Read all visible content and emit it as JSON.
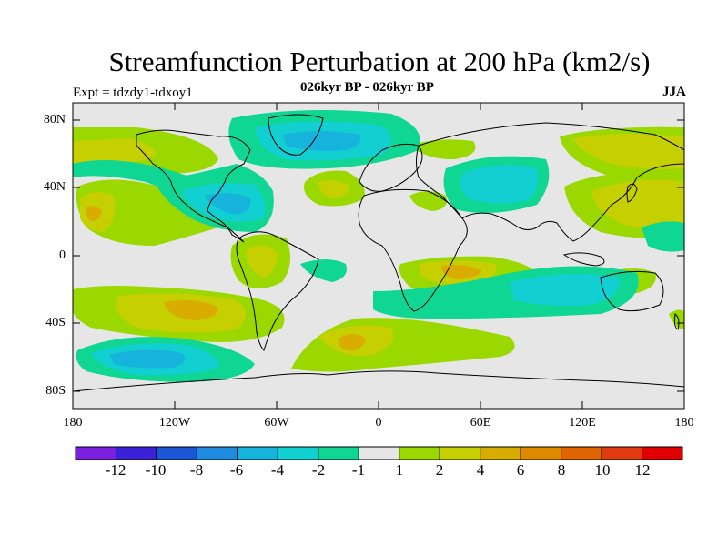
{
  "map": {
    "title": "Streamfunction Perturbation at 200 hPa (km2/s)",
    "subtitle": "026kyr BP - 026kyr BP",
    "expt": "Expt = tdzdy1-tdxoy1",
    "season": "JJA",
    "lat_labels": [
      "80N",
      "40N",
      "0",
      "40S",
      "80S"
    ],
    "lon_labels": [
      "180",
      "120W",
      "60W",
      "0",
      "60E",
      "120E",
      "180"
    ],
    "background_color": "#e6e6e6"
  },
  "colorbar": {
    "labels": [
      "-12",
      "-10",
      "-8",
      "-6",
      "-4",
      "-2",
      "-1",
      "1",
      "2",
      "4",
      "6",
      "8",
      "10",
      "12"
    ],
    "colors": [
      "#7b1fe0",
      "#3a22d8",
      "#1a56d6",
      "#1e8be0",
      "#16b4dc",
      "#12cfd2",
      "#10d694",
      "#e6e6e6",
      "#9ad800",
      "#c6cf00",
      "#d9ad00",
      "#e08a00",
      "#e06400",
      "#e03a10",
      "#e00000"
    ]
  }
}
